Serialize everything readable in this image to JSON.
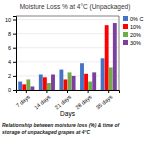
{
  "chart_data": {
    "type": "bar",
    "title": "Moisture Loss % at 4°C (Unpackaged)",
    "xlabel": "Days",
    "categories": [
      "7 days",
      "14 days",
      "21 days",
      "28 days",
      "35 days"
    ],
    "series": [
      {
        "name": "0% C",
        "color": "#4472C4",
        "values": [
          1.2,
          2.2,
          2.9,
          3.8,
          4.5
        ]
      },
      {
        "name": "10%",
        "color": "#FF0000",
        "values": [
          0.8,
          1.8,
          1.5,
          2.3,
          9.2
        ]
      },
      {
        "name": "20%",
        "color": "#70AD47",
        "values": [
          1.5,
          1.0,
          2.5,
          1.2,
          3.2
        ]
      },
      {
        "name": "30%",
        "color": "#7B3F9E",
        "values": [
          0.5,
          2.2,
          2.0,
          2.5,
          9.5
        ]
      }
    ],
    "ylim": [
      0,
      10.5
    ],
    "yticks": [
      0,
      2,
      4,
      6,
      8,
      10
    ],
    "grid": true,
    "legend": "right",
    "annotations": [
      "Relationship between moisture loss (%) & time of\nstorage of unpackaged grapes at 4°C"
    ]
  }
}
